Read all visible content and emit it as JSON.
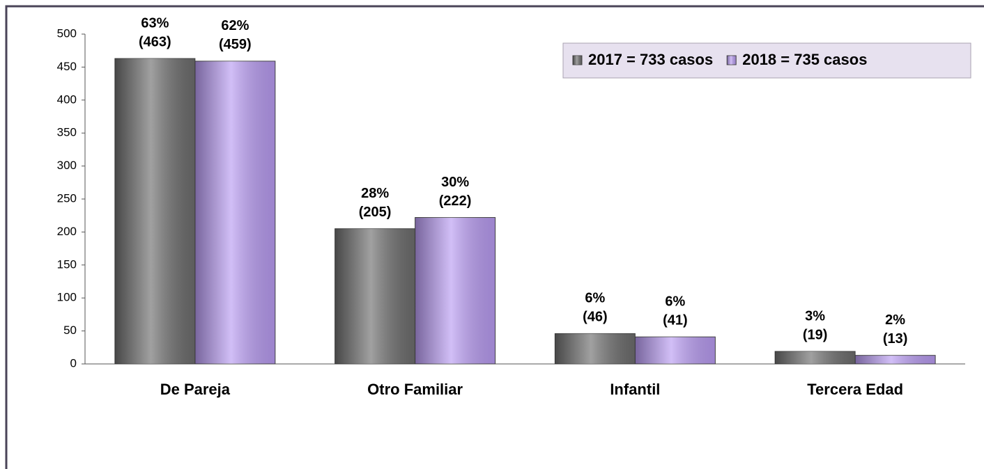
{
  "chart_data": {
    "type": "bar",
    "categories": [
      "De Pareja",
      "Otro Familiar",
      "Infantil",
      "Tercera Edad"
    ],
    "series": [
      {
        "name": "2017 =  733 casos",
        "color": "#6e6e6e",
        "values": [
          463,
          205,
          46,
          19
        ],
        "value_labels": [
          "(463)",
          "(205)",
          "(46)",
          "(19)"
        ],
        "percent_labels": [
          "63%",
          "28%",
          "6%",
          "3%"
        ]
      },
      {
        "name": "2018 = 735 casos",
        "color": "#b99cf2",
        "values": [
          459,
          222,
          41,
          13
        ],
        "value_labels": [
          "(459)",
          "(222)",
          "(41)",
          "(13)"
        ],
        "percent_labels": [
          "62%",
          "30%",
          "6%",
          "2%"
        ]
      }
    ],
    "ylim": [
      0,
      500
    ],
    "yticks": [
      0,
      50,
      100,
      150,
      200,
      250,
      300,
      350,
      400,
      450,
      500
    ],
    "legend": "top-right",
    "grid": false
  }
}
